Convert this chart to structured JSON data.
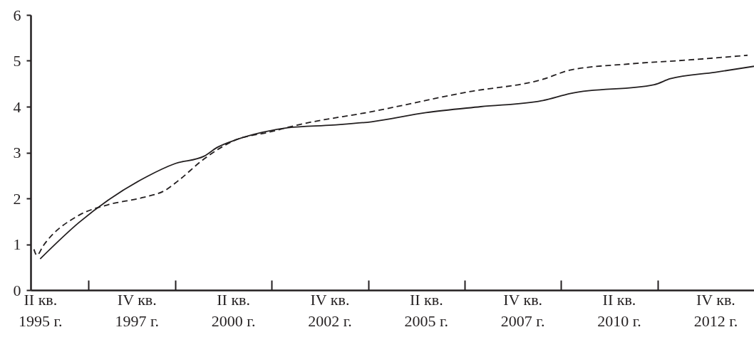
{
  "chart_data": {
    "type": "line",
    "xlim": [
      "1995-01",
      "2013-10"
    ],
    "ylim": [
      0,
      6
    ],
    "xticks": [
      {
        "value": "1995-04",
        "label": "II кв.\n1995 г."
      },
      {
        "value": "1996-07",
        "label": null
      },
      {
        "value": "1997-10",
        "label": "IV кв.\n1997 г."
      },
      {
        "value": "1998-10",
        "label": null
      },
      {
        "value": "2000-04",
        "label": "II кв.\n2000 г."
      },
      {
        "value": "2001-04",
        "label": null
      },
      {
        "value": "2002-10",
        "label": "IV кв.\n2002 г."
      },
      {
        "value": "2003-10",
        "label": null
      },
      {
        "value": "2005-04",
        "label": "II кв.\n2005 г."
      },
      {
        "value": "2006-04",
        "label": null
      },
      {
        "value": "2007-10",
        "label": "IV кв.\n2007 г."
      },
      {
        "value": "2008-10",
        "label": null
      },
      {
        "value": "2010-04",
        "label": "II кв.\n2010 г."
      },
      {
        "value": "2011-04",
        "label": null
      },
      {
        "value": "2012-10",
        "label": "IV кв.\n2012 г."
      }
    ],
    "yticks": [
      0,
      1,
      2,
      3,
      4,
      5,
      6
    ],
    "grid": false,
    "series": [
      {
        "color": "#231f20",
        "line_style": "solid",
        "x": [
          "1995-04",
          "1996-04",
          "1998-01",
          "1998-10",
          "1999-07",
          "1999-11",
          "2000-05",
          "2001-01",
          "2001-09",
          "2002-11",
          "2003-11",
          "2005-04",
          "2006-09",
          "2008-04",
          "2009-01",
          "2011-03",
          "2011-08",
          "2012-10",
          "2013-10"
        ],
        "values": [
          0.68,
          1.47,
          2.47,
          2.76,
          2.92,
          3.11,
          3.28,
          3.44,
          3.54,
          3.6,
          3.67,
          3.87,
          4.0,
          4.13,
          4.29,
          4.48,
          4.61,
          4.75,
          4.88
        ]
      },
      {
        "color": "#231f20",
        "line_style": "dashed",
        "x": [
          "1995-02",
          "1995-03",
          "1995-05",
          "1996-04",
          "1997-01",
          "1997-12",
          "1998-07",
          "1998-11",
          "1999-07",
          "2000-05",
          "2001-03",
          "2001-12",
          "2003-11",
          "2006-05",
          "2008-04",
          "2009-01",
          "2010-07",
          "2012-02",
          "2013-08"
        ],
        "values": [
          0.89,
          0.76,
          0.97,
          1.63,
          1.86,
          2.02,
          2.18,
          2.39,
          2.86,
          3.28,
          3.44,
          3.6,
          3.89,
          4.32,
          4.59,
          4.8,
          4.93,
          5.02,
          5.12
        ]
      }
    ]
  }
}
